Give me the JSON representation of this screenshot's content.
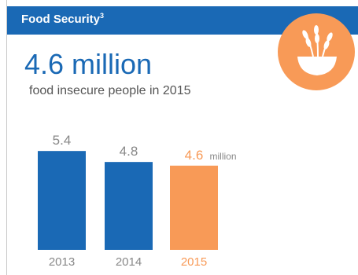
{
  "header": {
    "title": "Food Security",
    "superscript": "3"
  },
  "headline": {
    "value": "4.6 million",
    "subtitle": "food insecure people in 2015"
  },
  "icon": {
    "name": "grain-bowl-icon",
    "color": "#f89a57"
  },
  "colors": {
    "brand_blue": "#1a69b5",
    "highlight_orange": "#f89a57",
    "label_gray": "#888888"
  },
  "chart_data": {
    "type": "bar",
    "categories": [
      "2013",
      "2014",
      "2015"
    ],
    "values": [
      5.4,
      4.8,
      4.6
    ],
    "value_labels": [
      "5.4",
      "4.8",
      "4.6"
    ],
    "highlight_unit": "million",
    "highlight_index": 2,
    "bar_colors": [
      "#1a69b5",
      "#1a69b5",
      "#f89a57"
    ],
    "title": "",
    "xlabel": "",
    "ylabel": "",
    "grid": false
  }
}
